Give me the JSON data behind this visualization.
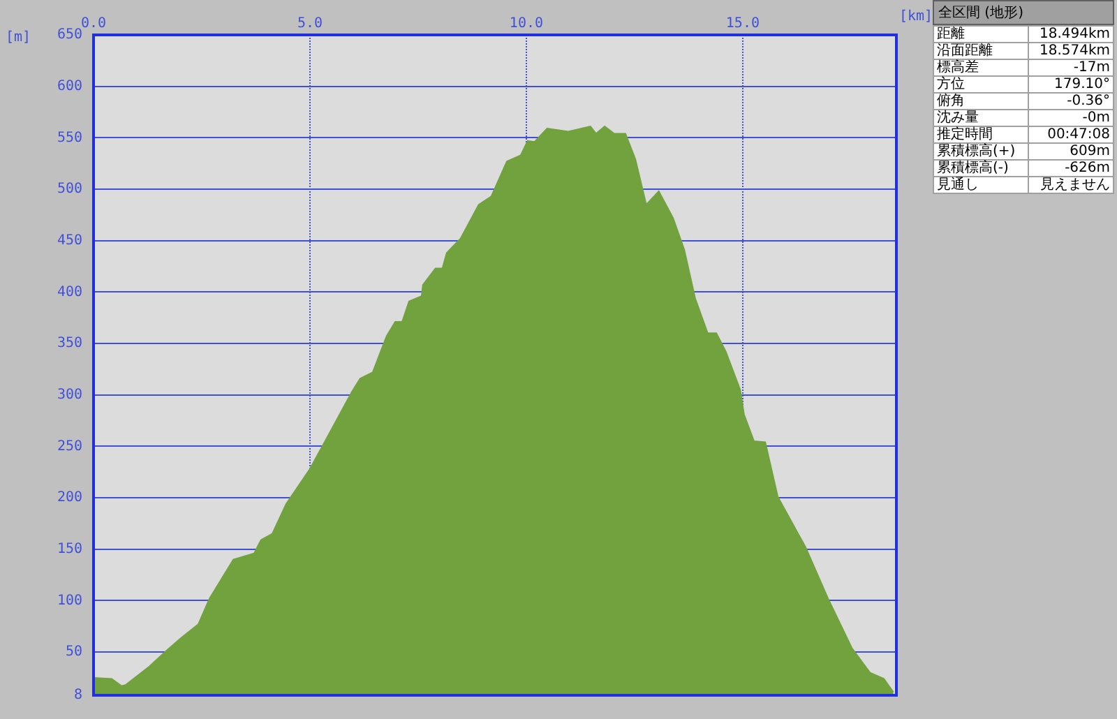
{
  "chart_data": [
    {
      "type": "area",
      "xlabel": "[km]",
      "ylabel": "[m]",
      "x": [
        0,
        0.42,
        0.65,
        0.74,
        1.29,
        1.65,
        2.03,
        2.42,
        2.68,
        3.23,
        3.71,
        3.87,
        4.13,
        4.45,
        5.0,
        5.35,
        5.97,
        6.16,
        6.45,
        6.77,
        6.97,
        7.13,
        7.29,
        7.58,
        7.61,
        7.9,
        8.06,
        8.16,
        8.48,
        8.9,
        9.19,
        9.55,
        9.87,
        10.03,
        10.19,
        10.48,
        10.97,
        11.48,
        11.61,
        11.81,
        12.03,
        12.29,
        12.52,
        12.77,
        13.06,
        13.39,
        13.65,
        13.9,
        14.19,
        14.39,
        14.61,
        14.94,
        15.03,
        15.26,
        15.52,
        15.81,
        16.45,
        16.97,
        17.52,
        17.94,
        18.26,
        18.48
      ],
      "values": [
        25,
        24,
        17,
        18,
        36,
        50,
        64,
        77,
        102,
        140,
        146,
        159,
        165,
        194,
        228,
        255,
        303,
        316,
        322,
        357,
        371,
        371,
        391,
        396,
        407,
        423,
        423,
        438,
        452,
        485,
        493,
        527,
        533,
        547,
        546,
        559,
        556,
        561,
        554,
        561,
        554,
        554,
        529,
        485,
        498,
        472,
        441,
        394,
        360,
        360,
        342,
        305,
        281,
        255,
        254,
        201,
        152,
        102,
        54,
        30,
        24,
        11
      ],
      "color": "#72a23e",
      "xlim": [
        0,
        18.55
      ],
      "xticks": [
        {
          "value": 0,
          "label": "0.0"
        },
        {
          "value": 5,
          "label": "5.0"
        },
        {
          "value": 10,
          "label": "10.0"
        },
        {
          "value": 15,
          "label": "15.0"
        }
      ],
      "ylim": [
        8,
        650
      ],
      "yticks": [
        8,
        50,
        100,
        150,
        200,
        250,
        300,
        350,
        400,
        450,
        500,
        550,
        600,
        650
      ],
      "grid": true,
      "legend": false
    },
    {
      "type": "other",
      "title": "全区間 (地形)",
      "categories": [
        "距離",
        "沿面距離",
        "標高差",
        "方位",
        "俯角",
        "沈み量",
        "推定時間",
        "累積標高(+)",
        "累積標高(-)",
        "見通し"
      ],
      "value_labels": [
        "18.494km",
        "18.574km",
        "-17m",
        "179.10°",
        "-0.36°",
        "-0m",
        "00:47:08",
        "609m",
        "-626m",
        "見えません"
      ]
    }
  ]
}
